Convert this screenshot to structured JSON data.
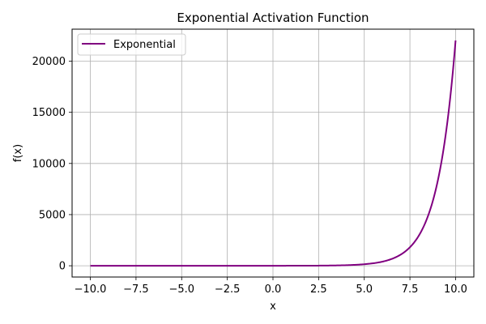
{
  "chart_data": {
    "type": "line",
    "title": "Exponential Activation Function",
    "xlabel": "x",
    "ylabel": "f(x)",
    "xlim": [
      -11,
      11
    ],
    "ylim": [
      -1101.3,
      23127.7
    ],
    "x_ticks": [
      -10,
      -7.5,
      -5,
      -2.5,
      0,
      2.5,
      5,
      7.5,
      10
    ],
    "x_tick_labels": [
      "−10.0",
      "−7.5",
      "−5.0",
      "−2.5",
      "0.0",
      "2.5",
      "5.0",
      "7.5",
      "10.0"
    ],
    "y_ticks": [
      0,
      5000,
      10000,
      15000,
      20000
    ],
    "y_tick_labels": [
      "0",
      "5000",
      "10000",
      "15000",
      "20000"
    ],
    "grid": true,
    "legend_position": "top-left",
    "series": [
      {
        "name": "Exponential",
        "color": "#800080",
        "function": "exp",
        "x_range": [
          -10,
          10
        ],
        "x": [
          -10,
          -7.5,
          -5,
          -2.5,
          0,
          2.5,
          5,
          6,
          7,
          7.5,
          8,
          8.5,
          9,
          9.5,
          10
        ],
        "y": [
          4.54e-05,
          0.000553,
          0.00674,
          0.0821,
          1,
          12.18,
          148.4,
          403.4,
          1096.6,
          1808.0,
          2981.0,
          4914.8,
          8103.1,
          13359.7,
          22026.5
        ]
      }
    ]
  }
}
